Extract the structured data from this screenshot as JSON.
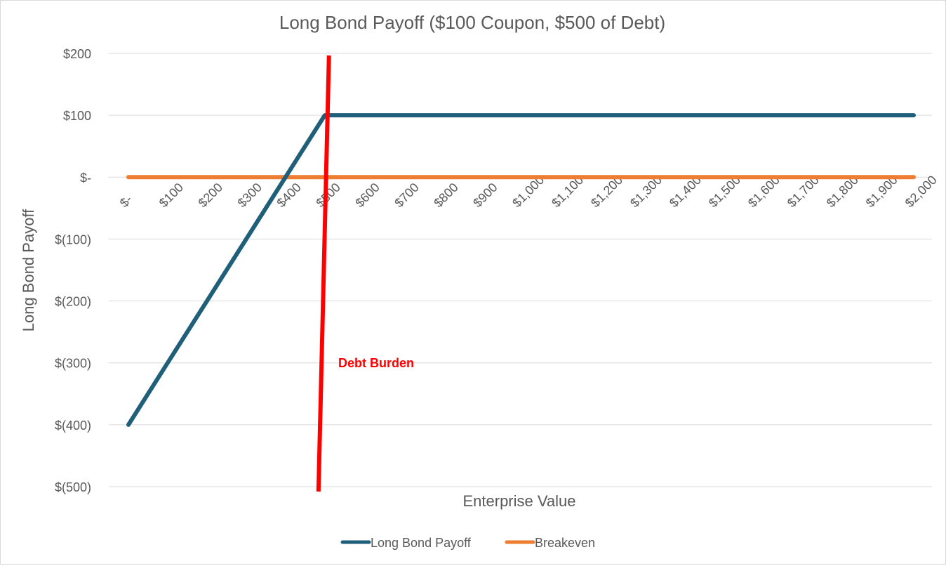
{
  "chart_data": {
    "type": "line",
    "title": "Long Bond Payoff ($100 Coupon, $500 of Debt)",
    "xlabel": "Enterprise Value",
    "ylabel": "Long Bond Payoff",
    "categories": [
      0,
      100,
      200,
      300,
      400,
      500,
      600,
      700,
      800,
      900,
      1000,
      1100,
      1200,
      1300,
      1400,
      1500,
      1600,
      1700,
      1800,
      1900,
      2000
    ],
    "x_tick_labels": [
      "$-",
      "$100",
      "$200",
      "$300",
      "$400",
      "$500",
      "$600",
      "$700",
      "$800",
      "$900",
      "$1,000",
      "$1,100",
      "$1,200",
      "$1,300",
      "$1,400",
      "$1,500",
      "$1,600",
      "$1,700",
      "$1,800",
      "$1,900",
      "$2,000"
    ],
    "ylim": [
      -500,
      200
    ],
    "y_ticks": [
      200,
      100,
      0,
      -100,
      -200,
      -300,
      -400,
      -500
    ],
    "y_tick_labels": [
      "$200",
      "$100",
      "$-",
      "$(100)",
      "$(200)",
      "$(300)",
      "$(400)",
      "$(500)"
    ],
    "series": [
      {
        "name": "Long Bond Payoff",
        "color": "#1f5f7a",
        "values": [
          -400,
          -300,
          -200,
          -100,
          0,
          100,
          100,
          100,
          100,
          100,
          100,
          100,
          100,
          100,
          100,
          100,
          100,
          100,
          100,
          100,
          100
        ]
      },
      {
        "name": "Breakeven",
        "color": "#ed7d31",
        "values": [
          0,
          0,
          0,
          0,
          0,
          0,
          0,
          0,
          0,
          0,
          0,
          0,
          0,
          0,
          0,
          0,
          0,
          0,
          0,
          0,
          0
        ]
      }
    ],
    "annotation": {
      "text": "Debt Burden",
      "x_value": 500,
      "color": "#ff0000"
    },
    "grid": true,
    "legend_position": "bottom"
  }
}
